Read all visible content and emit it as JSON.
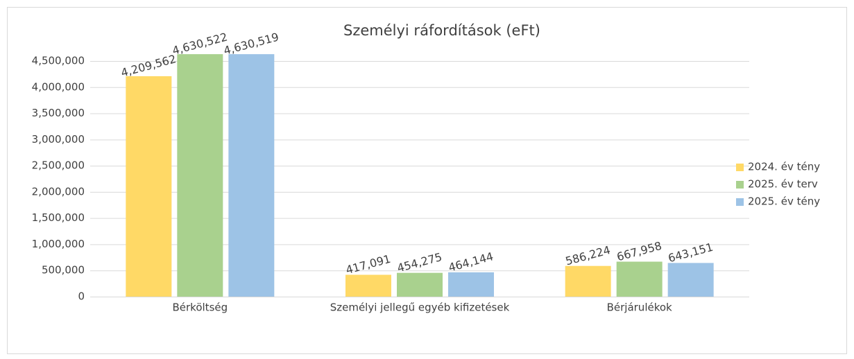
{
  "chart_data": {
    "type": "bar",
    "title": "Személyi ráfordítások (eFt)",
    "categories": [
      "Bérköltség",
      "Személyi jellegű egyéb kifizetések",
      "Bérjárulékok"
    ],
    "series": [
      {
        "name": "2024. év tény",
        "color": "#ffd966",
        "values": [
          4209562,
          417091,
          586224
        ],
        "value_labels": [
          "4,209,562",
          "417,091",
          "586,224"
        ]
      },
      {
        "name": "2025. év terv",
        "color": "#a9d18e",
        "values": [
          4630522,
          454275,
          667958
        ],
        "value_labels": [
          "4,630,522",
          "454,275",
          "667,958"
        ]
      },
      {
        "name": "2025. év tény",
        "color": "#9dc3e6",
        "values": [
          4630519,
          464144,
          643151
        ],
        "value_labels": [
          "4,630,519",
          "464,144",
          "643,151"
        ]
      }
    ],
    "ylim": [
      0,
      4500000
    ],
    "yticks": [
      0,
      {
        "value": 500000,
        "label": "500,000"
      },
      {
        "value": 1000000,
        "label": "1,000,000"
      },
      {
        "value": 1500000,
        "label": "1,500,000"
      },
      {
        "value": 2000000,
        "label": "2,000,000"
      },
      {
        "value": 2500000,
        "label": "2,500,000"
      },
      {
        "value": 3000000,
        "label": "3,000,000"
      },
      {
        "value": 3500000,
        "label": "3,500,000"
      },
      {
        "value": 4000000,
        "label": "4,000,000"
      },
      {
        "value": 4500000,
        "label": "4,500,000"
      }
    ],
    "grid": true,
    "legend": "right"
  }
}
